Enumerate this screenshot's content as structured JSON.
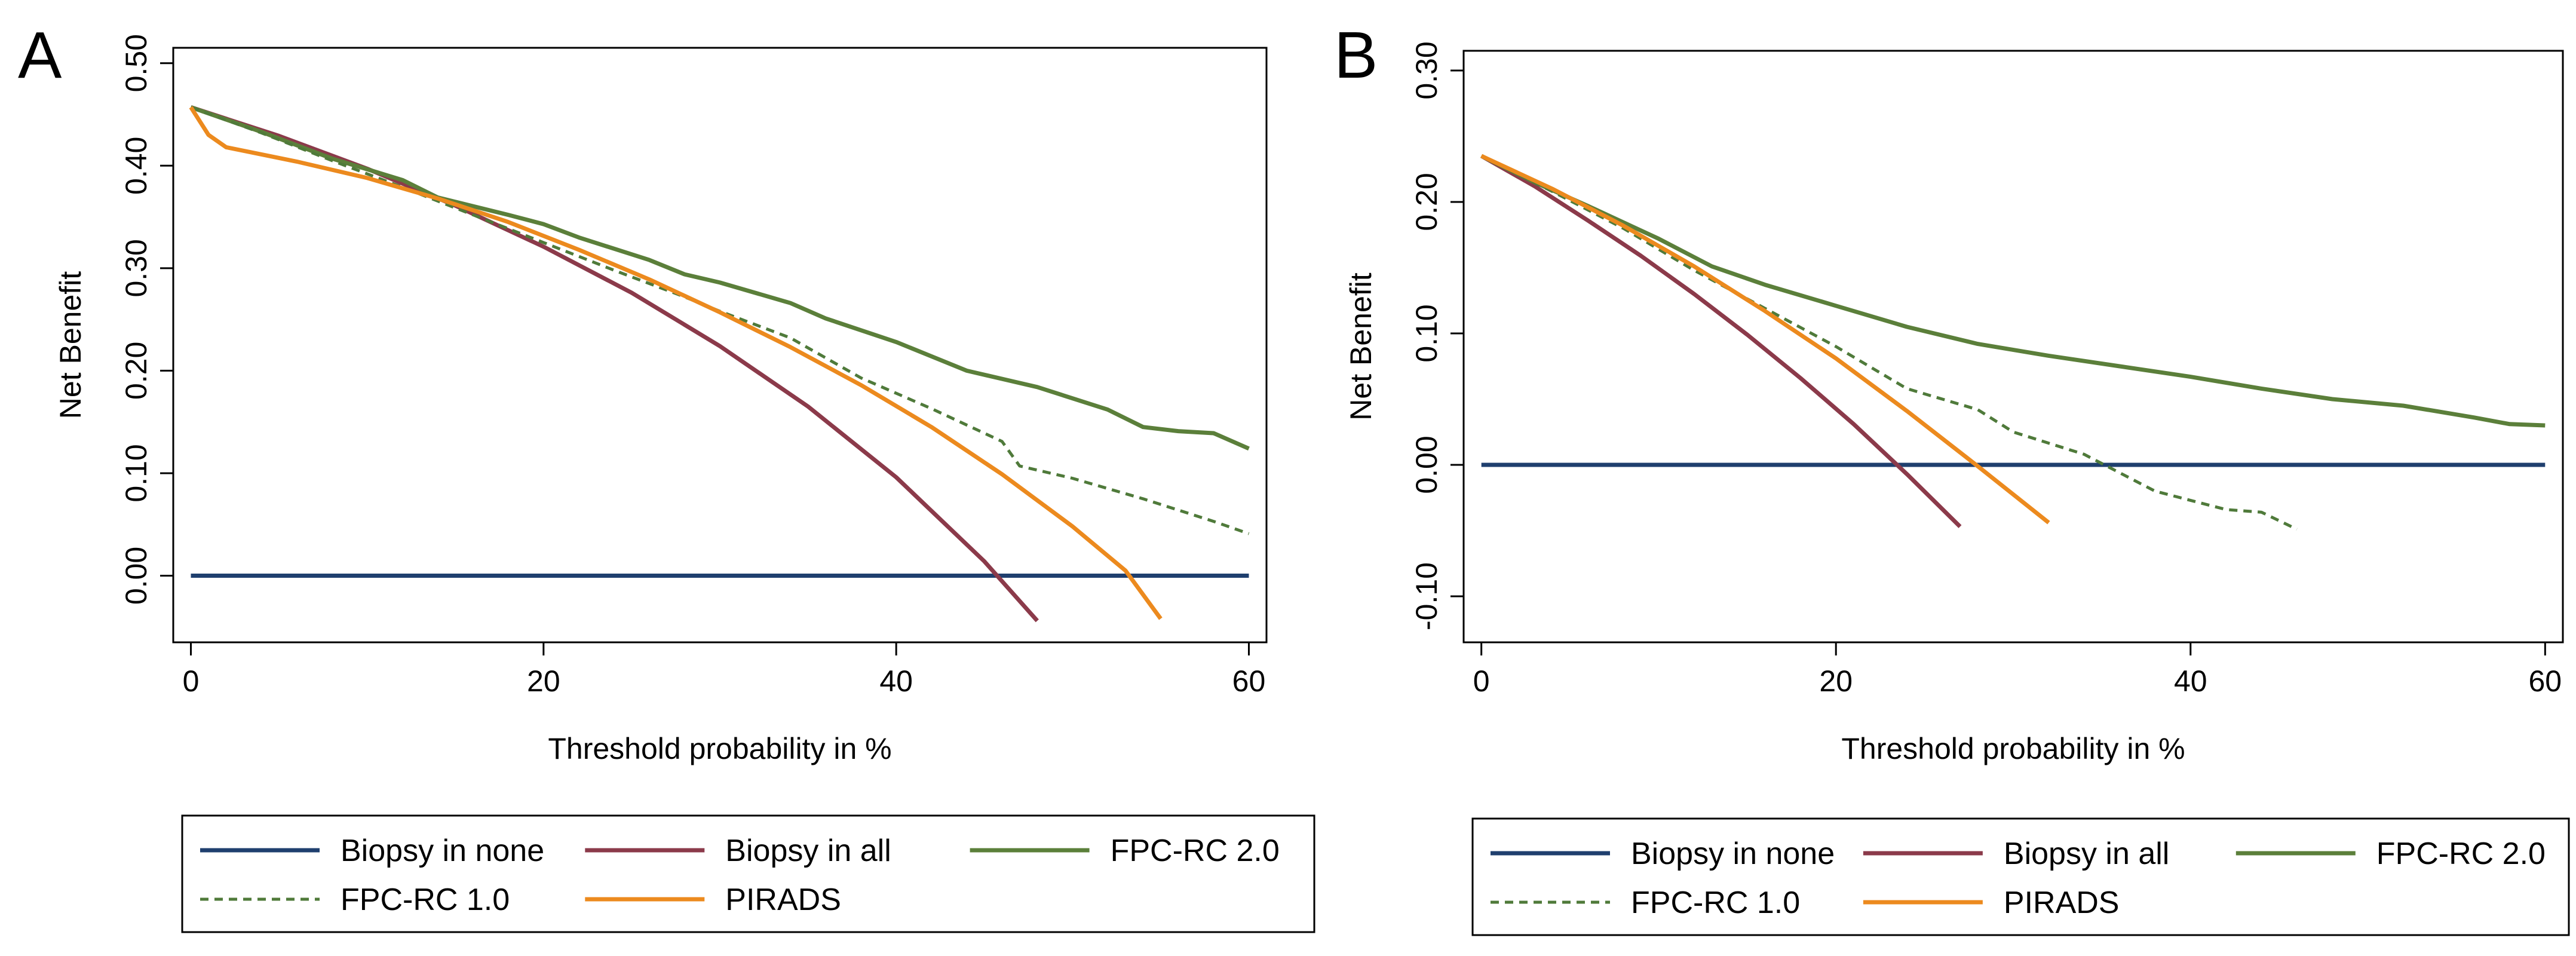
{
  "chart_data": [
    {
      "type": "line",
      "panel_label": "A",
      "xlabel": "Threshold probability in %",
      "ylabel": "Net Benefit",
      "xlim": [
        -1,
        61
      ],
      "ylim": [
        -0.065,
        0.515
      ],
      "x_ticks": [
        0,
        20,
        40,
        60
      ],
      "x_tick_labels": [
        "0",
        "20",
        "40",
        "60"
      ],
      "y_ticks": [
        0,
        0.1,
        0.2,
        0.3,
        0.4,
        0.5
      ],
      "y_tick_labels": [
        "0.00",
        "0.10",
        "0.20",
        "0.30",
        "0.40",
        "0.50"
      ],
      "legend_position": "bottom",
      "series": [
        {
          "name": "Biopsy in none",
          "key": "none",
          "color": "#1f3f6e",
          "dash": "",
          "x": [
            0,
            60
          ],
          "y": [
            0,
            0
          ]
        },
        {
          "name": "Biopsy in all",
          "key": "all",
          "color": "#8b3a4a",
          "dash": "",
          "x": [
            0,
            5,
            10,
            15,
            20,
            25,
            30,
            35,
            40,
            45,
            48
          ],
          "y": [
            0.457,
            0.429,
            0.397,
            0.361,
            0.321,
            0.276,
            0.224,
            0.165,
            0.096,
            0.014,
            -0.044
          ]
        },
        {
          "name": "FPC-RC 2.0",
          "key": "fpc2",
          "color": "#5b7f3a",
          "dash": "",
          "x": [
            0,
            4,
            8,
            12,
            14,
            18,
            20,
            22,
            26,
            28,
            30,
            34,
            36,
            40,
            42,
            44,
            48,
            52,
            54,
            56,
            58,
            60
          ],
          "y": [
            0.457,
            0.433,
            0.407,
            0.386,
            0.369,
            0.352,
            0.343,
            0.33,
            0.308,
            0.294,
            0.286,
            0.266,
            0.251,
            0.228,
            0.214,
            0.2,
            0.184,
            0.162,
            0.145,
            0.141,
            0.139,
            0.124
          ]
        },
        {
          "name": "FPC-RC 1.0",
          "key": "fpc1",
          "color": "#4f7a3a",
          "dash": "14 10",
          "x": [
            0,
            4,
            8,
            12,
            16,
            20,
            24,
            28,
            30,
            34,
            38,
            42,
            46,
            47,
            50,
            54,
            58,
            60
          ],
          "y": [
            0.457,
            0.432,
            0.405,
            0.379,
            0.352,
            0.325,
            0.298,
            0.272,
            0.258,
            0.232,
            0.193,
            0.163,
            0.131,
            0.107,
            0.095,
            0.075,
            0.053,
            0.041
          ]
        },
        {
          "name": "PIRADS",
          "key": "pirads",
          "color": "#ec8a1e",
          "dash": "",
          "x": [
            0,
            1,
            2,
            6,
            10,
            14,
            18,
            22,
            26,
            30,
            34,
            38,
            42,
            46,
            50,
            53,
            55
          ],
          "y": [
            0.457,
            0.43,
            0.418,
            0.404,
            0.388,
            0.368,
            0.345,
            0.318,
            0.289,
            0.257,
            0.223,
            0.186,
            0.145,
            0.099,
            0.048,
            0.005,
            -0.042
          ]
        }
      ],
      "legend": [
        {
          "key": "none",
          "label": "Biopsy in none"
        },
        {
          "key": "all",
          "label": "Biopsy in all"
        },
        {
          "key": "fpc2",
          "label": "FPC-RC 2.0"
        },
        {
          "key": "fpc1",
          "label": "FPC-RC 1.0"
        },
        {
          "key": "pirads",
          "label": "PIRADS"
        }
      ]
    },
    {
      "type": "line",
      "panel_label": "B",
      "xlabel": "Threshold probability in %",
      "ylabel": "Net Benefit",
      "xlim": [
        -1,
        61
      ],
      "ylim": [
        -0.135,
        0.315
      ],
      "x_ticks": [
        0,
        20,
        40,
        60
      ],
      "x_tick_labels": [
        "0",
        "20",
        "40",
        "60"
      ],
      "y_ticks": [
        -0.1,
        0,
        0.1,
        0.2,
        0.3
      ],
      "y_tick_labels": [
        "-0.10",
        "0.00",
        "0.10",
        "0.20",
        "0.30"
      ],
      "legend_position": "bottom",
      "series": [
        {
          "name": "Biopsy in none",
          "key": "none",
          "color": "#1f3f6e",
          "dash": "",
          "x": [
            0,
            60
          ],
          "y": [
            0,
            0
          ]
        },
        {
          "name": "Biopsy in all",
          "key": "all",
          "color": "#8b3a4a",
          "dash": "",
          "x": [
            0,
            3,
            6,
            9,
            12,
            15,
            18,
            21,
            24,
            27
          ],
          "y": [
            0.235,
            0.212,
            0.186,
            0.159,
            0.13,
            0.099,
            0.066,
            0.031,
            -0.007,
            -0.047
          ]
        },
        {
          "name": "FPC-RC 2.0",
          "key": "fpc2",
          "color": "#5b7f3a",
          "dash": "",
          "x": [
            0,
            3,
            6,
            10,
            13,
            16,
            20,
            24,
            28,
            32,
            36,
            40,
            44,
            48,
            52,
            56,
            58,
            60
          ],
          "y": [
            0.235,
            0.215,
            0.197,
            0.172,
            0.151,
            0.137,
            0.121,
            0.105,
            0.092,
            0.083,
            0.075,
            0.067,
            0.058,
            0.05,
            0.045,
            0.036,
            0.031,
            0.03
          ]
        },
        {
          "name": "FPC-RC 1.0",
          "key": "fpc1",
          "color": "#4f7a3a",
          "dash": "14 10",
          "x": [
            0,
            4,
            8,
            12,
            16,
            20,
            24,
            28,
            30,
            34,
            38,
            42,
            44,
            46
          ],
          "y": [
            0.235,
            0.208,
            0.18,
            0.148,
            0.119,
            0.09,
            0.058,
            0.042,
            0.025,
            0.008,
            -0.02,
            -0.034,
            -0.036,
            -0.049
          ]
        },
        {
          "name": "PIRADS",
          "key": "pirads",
          "color": "#ec8a1e",
          "dash": "",
          "x": [
            0,
            4,
            8,
            12,
            16,
            20,
            24,
            28,
            32
          ],
          "y": [
            0.235,
            0.21,
            0.182,
            0.151,
            0.117,
            0.081,
            0.041,
            -0.001,
            -0.044
          ]
        }
      ],
      "legend": [
        {
          "key": "none",
          "label": "Biopsy in none"
        },
        {
          "key": "all",
          "label": "Biopsy in all"
        },
        {
          "key": "fpc2",
          "label": "FPC-RC 2.0"
        },
        {
          "key": "fpc1",
          "label": "FPC-RC 1.0"
        },
        {
          "key": "pirads",
          "label": "PIRADS"
        }
      ]
    }
  ]
}
